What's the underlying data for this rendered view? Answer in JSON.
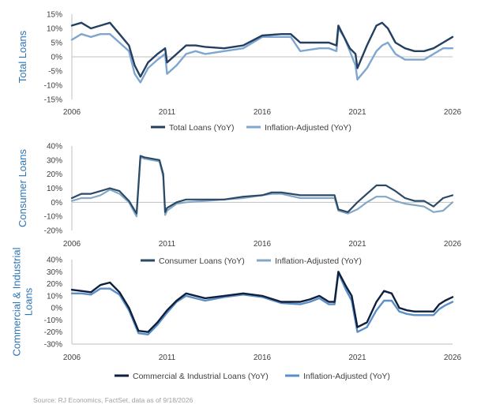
{
  "source": "Source: RJ Economics,  FactSet, data as of 9/18/2026",
  "colors": {
    "total_nominal": "#243f60",
    "total_adjusted": "#7ea6d0",
    "consumer_nominal": "#2b4a67",
    "consumer_adjusted": "#85a7c4",
    "ci_nominal": "#0f1f3d",
    "ci_adjusted": "#5b8fc7"
  },
  "chart_data": [
    {
      "type": "line",
      "ylabel": "Total Loans",
      "xlim": [
        2006,
        2026
      ],
      "xticks": [
        "2006",
        "2011",
        "2016",
        "2021",
        "2026"
      ],
      "ylim": [
        -15,
        15
      ],
      "yticks": [
        "15%",
        "10%",
        "5%",
        "0%",
        "-5%",
        "-10%",
        "-15%"
      ],
      "series": [
        {
          "name": "Total Loans (YoY)",
          "x": [
            2006,
            2006.5,
            2007,
            2007.5,
            2008,
            2008.5,
            2009,
            2009.3,
            2009.6,
            2010,
            2010.5,
            2010.9,
            2011,
            2011.5,
            2012,
            2012.5,
            2013,
            2014,
            2015,
            2016,
            2017,
            2017.5,
            2018,
            2019,
            2019.5,
            2019.9,
            2020,
            2020.3,
            2020.6,
            2020.9,
            2021,
            2021.5,
            2022,
            2022.3,
            2022.6,
            2023,
            2023.5,
            2024,
            2024.5,
            2025,
            2025.5,
            2026
          ],
          "y": [
            11,
            12,
            10,
            11,
            12,
            8,
            4,
            -3,
            -7,
            -2,
            1,
            3,
            -2,
            1,
            4,
            4,
            3.5,
            3,
            4,
            7.5,
            8,
            8,
            5,
            5,
            5,
            4,
            11,
            7,
            3,
            1,
            -4,
            4,
            11,
            12,
            10,
            5,
            3,
            2,
            2,
            3,
            5,
            7
          ]
        },
        {
          "name": "Inflation-Adjusted (YoY)",
          "x": [
            2006,
            2006.5,
            2007,
            2007.5,
            2008,
            2008.5,
            2009,
            2009.3,
            2009.6,
            2010,
            2010.5,
            2010.9,
            2011,
            2011.5,
            2012,
            2012.5,
            2013,
            2014,
            2015,
            2016,
            2017,
            2017.5,
            2018,
            2019,
            2019.5,
            2019.9,
            2020,
            2020.3,
            2020.6,
            2020.9,
            2021,
            2021.5,
            2022,
            2022.3,
            2022.6,
            2023,
            2023.5,
            2024,
            2024.5,
            2025,
            2025.5,
            2026
          ],
          "y": [
            6,
            8,
            7,
            8,
            8,
            5,
            2,
            -6,
            -9,
            -4,
            -1,
            1,
            -6,
            -3,
            1,
            2,
            1,
            2,
            3,
            7,
            7,
            7,
            2,
            3,
            3,
            2,
            10,
            7,
            2,
            -3,
            -8,
            -4,
            2,
            4,
            5,
            1,
            -1,
            -1,
            -1,
            1,
            3,
            3
          ]
        }
      ]
    },
    {
      "type": "line",
      "ylabel": "Consumer Loans",
      "xlim": [
        2006,
        2026
      ],
      "xticks": [
        "2006",
        "2011",
        "2016",
        "2021",
        "2026"
      ],
      "ylim": [
        -20,
        40
      ],
      "yticks": [
        "40%",
        "30%",
        "20%",
        "10%",
        "0%",
        "-10%",
        "-20%"
      ],
      "series": [
        {
          "name": "Consumer Loans (YoY)",
          "x": [
            2006,
            2006.5,
            2007,
            2007.5,
            2008,
            2008.5,
            2009,
            2009.4,
            2009.6,
            2009.8,
            2010.2,
            2010.6,
            2010.8,
            2010.9,
            2011,
            2011.5,
            2012,
            2013,
            2014,
            2015,
            2016,
            2016.5,
            2017,
            2018,
            2019,
            2019.8,
            2020,
            2020.5,
            2021,
            2021.5,
            2022,
            2022.5,
            2023,
            2023.5,
            2024,
            2024.5,
            2025,
            2025.5,
            2026
          ],
          "y": [
            3,
            6,
            6,
            8,
            10,
            8,
            1,
            -8,
            33,
            32,
            31,
            30,
            20,
            -7,
            -4,
            0,
            2,
            2,
            2,
            4,
            5,
            7,
            7,
            5,
            5,
            5,
            -5,
            -7,
            0,
            6,
            12,
            12,
            8,
            3,
            1,
            1,
            -3,
            3,
            5
          ]
        },
        {
          "name": "Inflation-Adjusted (YoY)",
          "x": [
            2006,
            2006.5,
            2007,
            2007.5,
            2008,
            2008.5,
            2009,
            2009.4,
            2009.6,
            2009.8,
            2010.2,
            2010.6,
            2010.8,
            2010.9,
            2011,
            2011.5,
            2012,
            2013,
            2014,
            2015,
            2016,
            2016.5,
            2017,
            2018,
            2019,
            2019.8,
            2020,
            2020.5,
            2021,
            2021.5,
            2022,
            2022.5,
            2023,
            2023.5,
            2024,
            2024.5,
            2025,
            2025.5,
            2026
          ],
          "y": [
            1,
            3,
            3,
            5,
            9,
            6,
            0,
            -10,
            32,
            31,
            30,
            29,
            18,
            -9,
            -6,
            -1,
            0,
            1,
            2,
            3,
            5,
            6,
            6,
            3,
            3,
            3,
            -6,
            -8,
            -5,
            0,
            4,
            4,
            1,
            -1,
            -2,
            -3,
            -7,
            -6,
            0
          ]
        }
      ]
    },
    {
      "type": "line",
      "ylabel": "Commercial & Industrial Loans",
      "xlim": [
        2006,
        2026
      ],
      "xticks": [
        "2006",
        "2011",
        "2016",
        "2021",
        "2026"
      ],
      "ylim": [
        -30,
        40
      ],
      "yticks": [
        "40%",
        "30%",
        "20%",
        "10%",
        "0%",
        "-10%",
        "-20%",
        "-30%"
      ],
      "series": [
        {
          "name": "Commercial & Industrial Loans (YoY)",
          "x": [
            2006,
            2006.5,
            2007,
            2007.5,
            2008,
            2008.5,
            2009,
            2009.5,
            2010,
            2010.5,
            2011,
            2011.5,
            2012,
            2013,
            2014,
            2015,
            2016,
            2017,
            2018,
            2018.5,
            2019,
            2019.5,
            2019.8,
            2020,
            2020.4,
            2020.7,
            2021,
            2021.5,
            2022,
            2022.4,
            2022.8,
            2023.2,
            2023.6,
            2024,
            2024.5,
            2025,
            2025.3,
            2025.6,
            2026
          ],
          "y": [
            15,
            14,
            13,
            19,
            21,
            13,
            0,
            -19,
            -20,
            -12,
            -2,
            6,
            12,
            8,
            10,
            12,
            10,
            5,
            5,
            7,
            10,
            5,
            5,
            30,
            18,
            10,
            -16,
            -12,
            5,
            14,
            12,
            0,
            -2,
            -3,
            -3,
            -3,
            3,
            6,
            9
          ]
        },
        {
          "name": "Inflation-Adjusted (YoY)",
          "x": [
            2006,
            2006.5,
            2007,
            2007.5,
            2008,
            2008.5,
            2009,
            2009.5,
            2010,
            2010.5,
            2011,
            2011.5,
            2012,
            2013,
            2014,
            2015,
            2016,
            2017,
            2018,
            2018.5,
            2019,
            2019.5,
            2019.8,
            2020,
            2020.4,
            2020.7,
            2021,
            2021.5,
            2022,
            2022.4,
            2022.8,
            2023.2,
            2023.6,
            2024,
            2024.5,
            2025,
            2025.3,
            2025.6,
            2026
          ],
          "y": [
            12,
            12,
            11,
            16,
            16,
            11,
            -2,
            -21,
            -22,
            -14,
            -4,
            5,
            10,
            6,
            9,
            11,
            9,
            4,
            3,
            5,
            8,
            3,
            3,
            29,
            15,
            6,
            -20,
            -16,
            -2,
            6,
            6,
            -3,
            -5,
            -6,
            -6,
            -6,
            -1,
            2,
            5
          ]
        }
      ]
    }
  ]
}
